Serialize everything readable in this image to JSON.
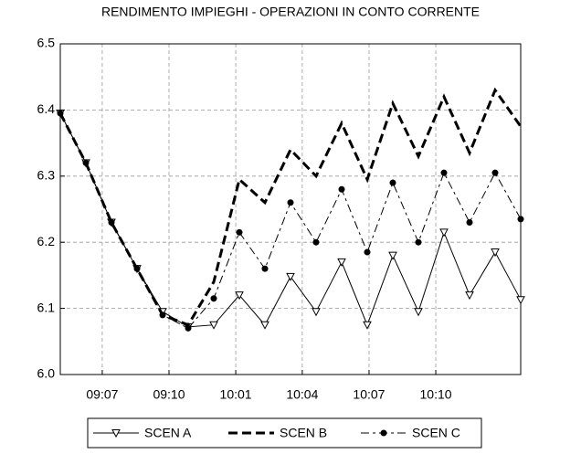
{
  "chart_data": {
    "type": "line",
    "title": "RENDIMENTO IMPIEGHI - OPERAZIONI IN CONTO CORRENTE",
    "x": [
      0,
      1,
      2,
      3,
      4,
      5,
      6,
      7,
      8,
      9,
      10,
      11,
      12,
      13,
      14,
      15,
      16,
      17,
      18
    ],
    "xlim": [
      0,
      18
    ],
    "xticks": [
      {
        "value": 1.64,
        "label": "09:07"
      },
      {
        "value": 4.25,
        "label": "09:10"
      },
      {
        "value": 6.86,
        "label": "10:01"
      },
      {
        "value": 9.46,
        "label": "10:04"
      },
      {
        "value": 12.07,
        "label": "10:07"
      },
      {
        "value": 14.68,
        "label": "10:10"
      }
    ],
    "ylim": [
      6.0,
      6.5
    ],
    "yticks": [
      {
        "value": 6.0,
        "label": "6.0"
      },
      6.1,
      6.2,
      6.3,
      6.4,
      {
        "value": 6.5,
        "label": "6.5"
      }
    ],
    "grid": true,
    "legend": "bottom",
    "series": [
      {
        "name": "SCEN A",
        "color": "#000000",
        "line_style": "solid",
        "marker": "triangle-down",
        "values": [
          6.395,
          6.32,
          6.23,
          6.16,
          6.095,
          6.072,
          6.075,
          6.12,
          6.075,
          6.148,
          6.095,
          6.17,
          6.075,
          6.18,
          6.095,
          6.215,
          6.12,
          6.185,
          6.113
        ]
      },
      {
        "name": "SCEN B",
        "color": "#000000",
        "line_style": "dashed",
        "marker": "none",
        "values": [
          6.395,
          6.32,
          6.23,
          6.16,
          6.09,
          6.075,
          6.14,
          6.295,
          6.26,
          6.34,
          6.3,
          6.38,
          6.295,
          6.41,
          6.33,
          6.42,
          6.335,
          6.43,
          6.375
        ]
      },
      {
        "name": "SCEN C",
        "color": "#000000",
        "line_style": "dash-dot",
        "marker": "circle",
        "values": [
          6.395,
          6.32,
          6.23,
          6.16,
          6.09,
          6.07,
          6.115,
          6.215,
          6.16,
          6.26,
          6.2,
          6.28,
          6.185,
          6.29,
          6.2,
          6.305,
          6.23,
          6.305,
          6.235
        ]
      }
    ]
  }
}
